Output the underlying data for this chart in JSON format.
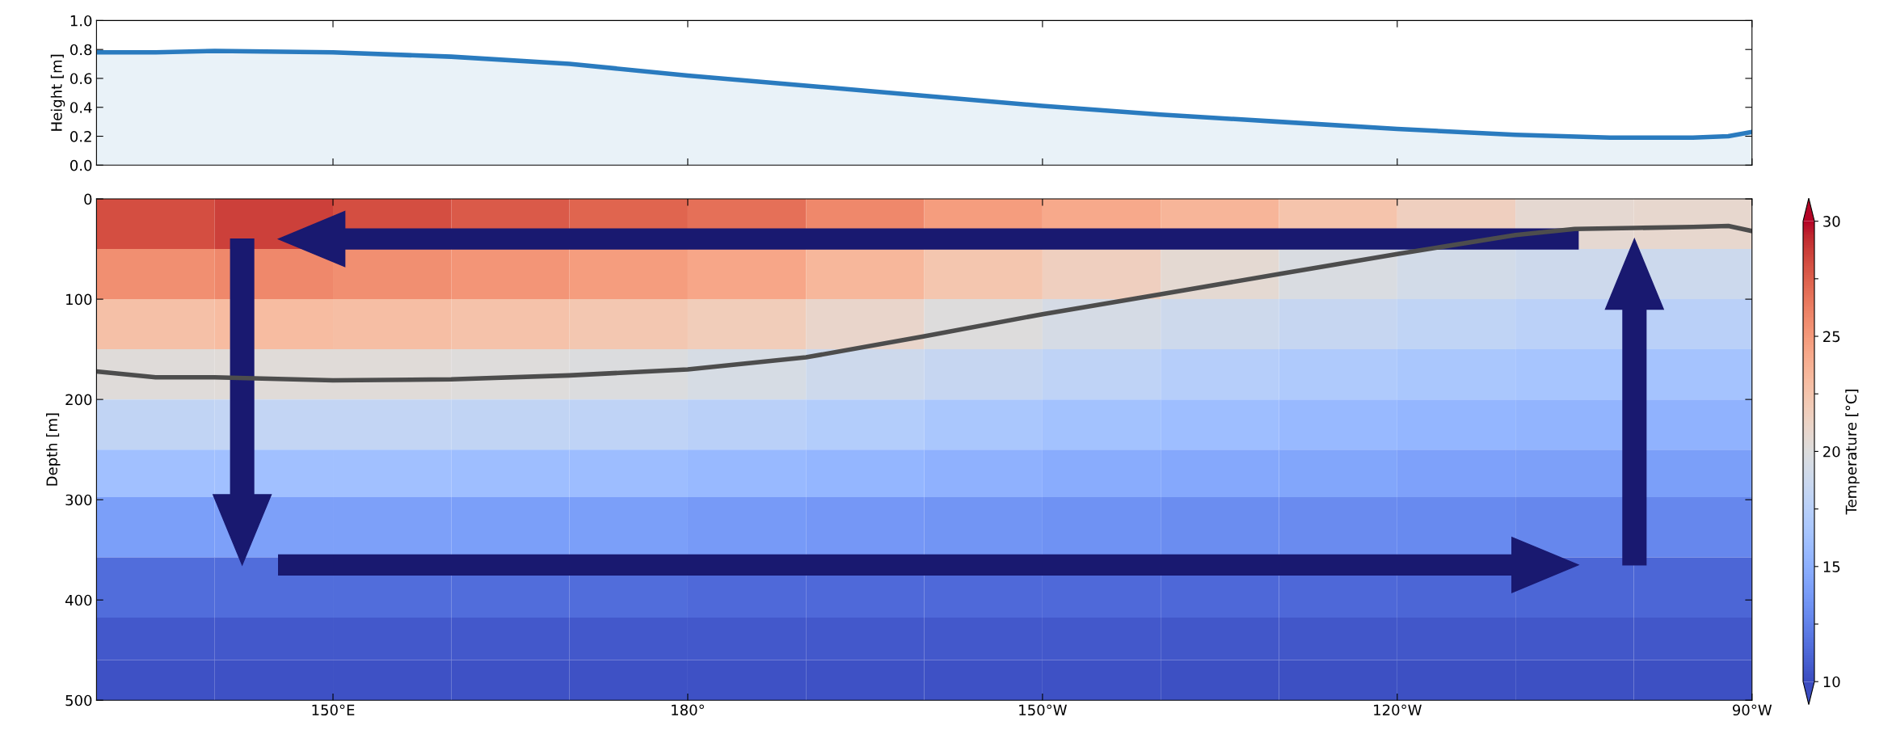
{
  "chart_data": [
    {
      "type": "area",
      "ylabel": "Height [m]",
      "x": [
        130,
        135,
        140,
        150,
        160,
        170,
        180,
        190,
        200,
        210,
        220,
        230,
        240,
        250,
        258,
        265,
        268,
        270
      ],
      "series": [
        {
          "color": "#2a7bbf",
          "values": [
            0.78,
            0.78,
            0.79,
            0.78,
            0.75,
            0.7,
            0.62,
            0.55,
            0.48,
            0.41,
            0.35,
            0.3,
            0.25,
            0.21,
            0.19,
            0.19,
            0.2,
            0.23
          ]
        }
      ],
      "xlim": [
        130,
        270
      ],
      "xticks": [
        {
          "value": 150,
          "label": null
        },
        {
          "value": 180,
          "label": null
        },
        {
          "value": 210,
          "label": null
        },
        {
          "value": 240,
          "label": null
        },
        {
          "value": 270,
          "label": null
        }
      ],
      "ylim": [
        0,
        1
      ],
      "yticks": [
        {
          "value": 0,
          "label": "0.0"
        },
        0.2,
        0.4,
        0.6,
        0.8,
        {
          "value": 1,
          "label": "1.0"
        }
      ],
      "tick_labels": "y",
      "grid": false
    },
    {
      "type": "heatmap",
      "ylabel": "Depth [m]",
      "clabel": "Temperature [°C]",
      "x": [
        135,
        145,
        155,
        165,
        175,
        185,
        195,
        205,
        215,
        225,
        235,
        245,
        255,
        265
      ],
      "y": [
        25,
        75,
        125,
        175,
        225,
        275,
        320,
        395,
        440,
        480
      ],
      "cells": [
        [
          28.2,
          28.6,
          28.2,
          27.7,
          27.3,
          26.8,
          25.8,
          24.8,
          24.2,
          23.5,
          22.5,
          21.6,
          20.7,
          20.8
        ],
        [
          25.5,
          25.8,
          25.5,
          25.2,
          24.8,
          24.3,
          23.4,
          22.4,
          21.6,
          20.6,
          19.7,
          19.2,
          18.9,
          18.8
        ],
        [
          22.8,
          23.1,
          22.9,
          22.6,
          22.3,
          21.8,
          21.0,
          20.0,
          19.4,
          18.9,
          18.4,
          18.0,
          17.7,
          17.6
        ],
        [
          20.2,
          20.3,
          20.3,
          20.1,
          19.9,
          19.5,
          18.9,
          18.4,
          17.9,
          17.4,
          17.0,
          16.7,
          16.5,
          16.4
        ],
        [
          18.1,
          18.2,
          18.2,
          18.1,
          17.9,
          17.6,
          17.2,
          16.7,
          16.3,
          16.0,
          15.7,
          15.4,
          15.3,
          15.2
        ],
        [
          16.1,
          16.1,
          16.1,
          16.0,
          15.9,
          15.7,
          15.4,
          15.1,
          14.8,
          14.6,
          14.4,
          14.2,
          14.1,
          14.0
        ],
        [
          14.0,
          14.1,
          14.1,
          14.0,
          14.0,
          13.8,
          13.6,
          13.5,
          13.3,
          13.1,
          13.0,
          12.9,
          12.8,
          12.8
        ],
        [
          11.5,
          11.5,
          11.5,
          11.5,
          11.5,
          11.4,
          11.4,
          11.4,
          11.4,
          11.3,
          11.3,
          11.2,
          11.2,
          11.2
        ],
        [
          10.6,
          10.6,
          10.6,
          10.6,
          10.6,
          10.6,
          10.6,
          10.6,
          10.6,
          10.5,
          10.5,
          10.5,
          10.5,
          10.5
        ],
        [
          10.3,
          10.3,
          10.3,
          10.3,
          10.3,
          10.3,
          10.3,
          10.3,
          10.3,
          10.2,
          10.2,
          10.2,
          10.2,
          10.2
        ]
      ],
      "series": [
        {
          "type": "line",
          "color": "#4d4d4d",
          "x": [
            130,
            135,
            140,
            150,
            160,
            170,
            180,
            190,
            200,
            210,
            220,
            230,
            240,
            250,
            255,
            260,
            265,
            268,
            270
          ],
          "values": [
            172,
            178,
            178,
            181,
            180,
            176,
            170,
            158,
            137,
            115,
            95,
            75,
            55,
            36,
            30,
            29,
            28,
            27,
            32
          ]
        }
      ],
      "xlim": [
        130,
        270
      ],
      "xticks": [
        {
          "value": 150,
          "label": "150°E"
        },
        {
          "value": 180,
          "label": "180°"
        },
        {
          "value": 210,
          "label": "150°W"
        },
        {
          "value": 240,
          "label": "120°W"
        },
        {
          "value": 270,
          "label": "90°W"
        }
      ],
      "ylim": [
        500,
        0
      ],
      "yticks": [
        0,
        100,
        200,
        300,
        400,
        500
      ],
      "clim": [
        10,
        30
      ],
      "cticks": [
        10,
        {
          "value": 12.5,
          "label": null
        },
        15,
        {
          "value": 17.5,
          "label": null
        },
        20,
        {
          "value": 22.5,
          "label": null
        },
        25,
        {
          "value": 27.5,
          "label": null
        },
        30
      ],
      "grid": false
    }
  ]
}
